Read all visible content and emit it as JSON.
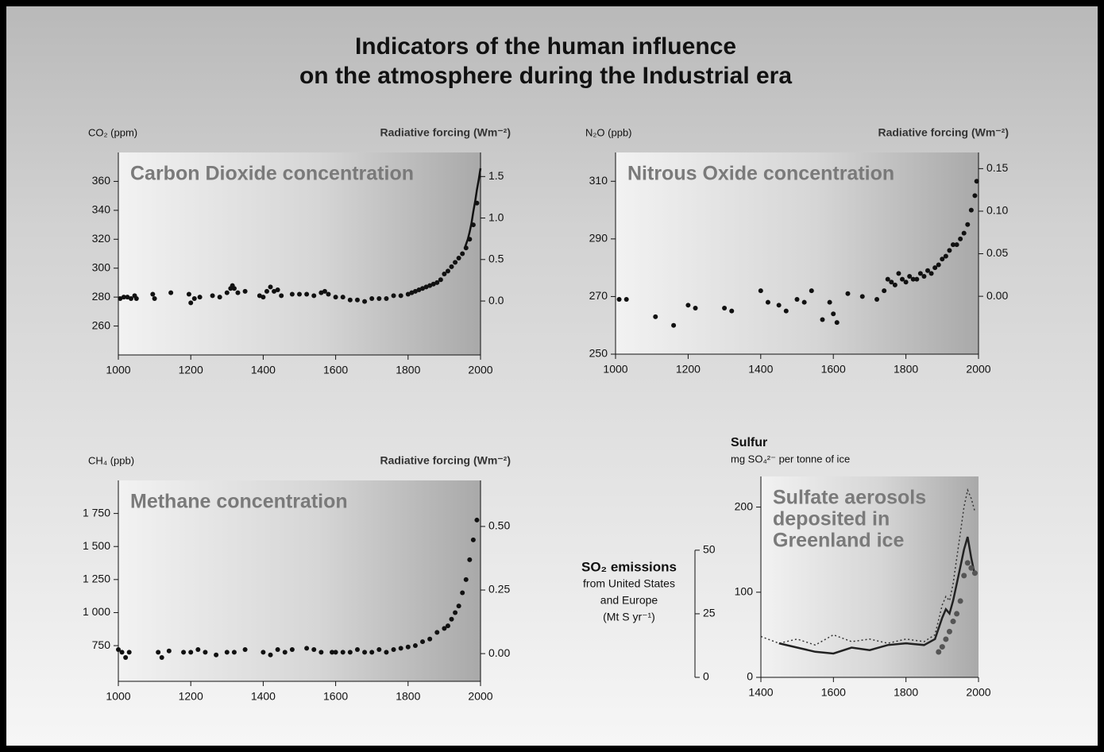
{
  "title_lines": [
    "Indicators of the human influence",
    "on the atmosphere during the Industrial era"
  ],
  "chart_data": [
    {
      "type": "scatter",
      "plot_title": [
        "Carbon Dioxide concentration"
      ],
      "ylabel": [
        "CO₂ (ppm)"
      ],
      "y2label": "Radiative forcing (Wm⁻²)",
      "xlim": [
        1000,
        2000
      ],
      "xticks": [
        1000,
        1200,
        1400,
        1600,
        1800,
        2000
      ],
      "ylim": [
        240,
        380
      ],
      "yticks": [
        260,
        280,
        300,
        320,
        340,
        360
      ],
      "y2lim": [
        -0.65,
        1.79
      ],
      "y2ticks": [
        {
          "value": 0,
          "label": "0.0"
        },
        0.5,
        {
          "value": 1,
          "label": "1.0"
        },
        1.5
      ],
      "series": [
        {
          "mode": "markers",
          "color": "#111111",
          "x": [
            1005,
            1015,
            1025,
            1035,
            1045,
            1050,
            1095,
            1100,
            1145,
            1195,
            1200,
            1210,
            1225,
            1260,
            1280,
            1300,
            1310,
            1315,
            1320,
            1330,
            1350,
            1390,
            1400,
            1410,
            1420,
            1430,
            1440,
            1450,
            1480,
            1500,
            1520,
            1540,
            1560,
            1570,
            1580,
            1600,
            1620,
            1640,
            1660,
            1680,
            1700,
            1720,
            1740,
            1760,
            1780,
            1800,
            1810,
            1820,
            1830,
            1840,
            1850,
            1860,
            1870,
            1880,
            1890,
            1900,
            1910,
            1920,
            1930,
            1940,
            1950,
            1960,
            1970,
            1980,
            1990
          ],
          "values": [
            279,
            280,
            280,
            279,
            281,
            279,
            282,
            279,
            283,
            282,
            276,
            279,
            280,
            281,
            280,
            283,
            286,
            288,
            286,
            283,
            284,
            281,
            280,
            284,
            287,
            284,
            285,
            281,
            282,
            282,
            282,
            281,
            283,
            284,
            282,
            280,
            280,
            278,
            278,
            277,
            279,
            279,
            279,
            281,
            281,
            282,
            283,
            284,
            285,
            286,
            287,
            288,
            289,
            290,
            292,
            296,
            298,
            301,
            304,
            307,
            310,
            314,
            320,
            330,
            345
          ]
        },
        {
          "mode": "line",
          "line_style": "solid",
          "color": "#111111",
          "x": [
            1958,
            1965,
            1970,
            1975,
            1980,
            1985,
            1990,
            1995,
            2000
          ],
          "values": [
            315,
            320,
            325,
            331,
            339,
            346,
            354,
            361,
            369
          ]
        }
      ]
    },
    {
      "type": "scatter",
      "plot_title": [
        "Nitrous Oxide concentration"
      ],
      "ylabel": [
        "N₂O (ppb)"
      ],
      "y2label": "Radiative forcing (Wm⁻²)",
      "xlim": [
        1000,
        2000
      ],
      "xticks": [
        1000,
        1200,
        1400,
        1600,
        1800,
        2000
      ],
      "ylim": [
        250,
        320
      ],
      "yticks": [
        250,
        270,
        290,
        310
      ],
      "y2lim": [
        -0.068,
        0.169
      ],
      "y2ticks": [
        {
          "value": 0,
          "label": "0.00"
        },
        0.05,
        {
          "value": 0.1,
          "label": "0.10"
        },
        0.15
      ],
      "series": [
        {
          "mode": "markers",
          "color": "#111111",
          "x": [
            1010,
            1030,
            1110,
            1160,
            1200,
            1220,
            1300,
            1320,
            1400,
            1420,
            1450,
            1470,
            1500,
            1520,
            1540,
            1570,
            1590,
            1600,
            1610,
            1640,
            1680,
            1720,
            1740,
            1750,
            1760,
            1770,
            1780,
            1790,
            1800,
            1810,
            1820,
            1830,
            1840,
            1850,
            1860,
            1870,
            1880,
            1890,
            1900,
            1910,
            1920,
            1930,
            1940,
            1950,
            1960,
            1970,
            1980,
            1990,
            1995
          ],
          "values": [
            269,
            269,
            263,
            260,
            267,
            266,
            266,
            265,
            272,
            268,
            267,
            265,
            269,
            268,
            272,
            262,
            268,
            264,
            261,
            271,
            270,
            269,
            272,
            276,
            275,
            274,
            278,
            276,
            275,
            277,
            276,
            276,
            278,
            277,
            279,
            278,
            280,
            281,
            283,
            284,
            286,
            288,
            288,
            290,
            292,
            295,
            300,
            305,
            310
          ]
        }
      ]
    },
    {
      "type": "scatter",
      "plot_title": [
        "Methane concentration"
      ],
      "ylabel": [
        "CH₄ (ppb)"
      ],
      "y2label": "Radiative forcing (Wm⁻²)",
      "xlim": [
        1000,
        2000
      ],
      "xticks": [
        1000,
        1200,
        1400,
        1600,
        1800,
        2000
      ],
      "ylim": [
        480,
        2000
      ],
      "yticks": [
        750,
        {
          "value": 1000,
          "label": "1 000"
        },
        {
          "value": 1250,
          "label": "1 250"
        },
        {
          "value": 1500,
          "label": "1 500"
        },
        {
          "value": 1750,
          "label": "1 750"
        }
      ],
      "y2lim": [
        -0.109,
        0.681
      ],
      "y2ticks": [
        {
          "value": 0,
          "label": "0.00"
        },
        0.25,
        {
          "value": 0.5,
          "label": "0.50"
        }
      ],
      "series": [
        {
          "mode": "markers",
          "color": "#111111",
          "x": [
            1000,
            1010,
            1020,
            1030,
            1110,
            1120,
            1140,
            1180,
            1200,
            1220,
            1240,
            1270,
            1300,
            1320,
            1350,
            1400,
            1420,
            1440,
            1460,
            1480,
            1520,
            1540,
            1560,
            1590,
            1600,
            1620,
            1640,
            1660,
            1680,
            1700,
            1720,
            1740,
            1760,
            1780,
            1800,
            1820,
            1840,
            1860,
            1880,
            1900,
            1910,
            1920,
            1930,
            1940,
            1950,
            1960,
            1970,
            1980,
            1990
          ],
          "values": [
            720,
            700,
            660,
            700,
            700,
            660,
            710,
            700,
            700,
            720,
            700,
            680,
            700,
            700,
            720,
            700,
            680,
            720,
            700,
            720,
            730,
            720,
            700,
            700,
            700,
            700,
            700,
            720,
            700,
            700,
            720,
            700,
            720,
            730,
            740,
            750,
            780,
            800,
            850,
            880,
            900,
            950,
            1000,
            1050,
            1150,
            1250,
            1400,
            1550,
            1700
          ]
        }
      ]
    },
    {
      "type": "line",
      "plot_title": [
        "Sulfate aerosols",
        "deposited in",
        "Greenland ice"
      ],
      "ylabel": [
        "Sulfur",
        "mg SO₄²⁻ per tonne of ice"
      ],
      "y2label": [
        "SO₂ emissions",
        "from United States",
        "and Europe",
        "(Mt S yr⁻¹)"
      ],
      "xlim": [
        1400,
        2000
      ],
      "xticks": [
        1400,
        1600,
        1800,
        2000
      ],
      "ylim": [
        0,
        236
      ],
      "yticks": [
        0,
        100,
        200
      ],
      "y2lim": [
        0,
        79
      ],
      "y2ticks": [
        0,
        25,
        50
      ],
      "series": [
        {
          "mode": "line",
          "line_style": "solid",
          "color": "#222222",
          "x": [
            1450,
            1500,
            1550,
            1600,
            1650,
            1700,
            1750,
            1800,
            1850,
            1880,
            1900,
            1910,
            1920,
            1930,
            1940,
            1950,
            1960,
            1970,
            1980,
            1990
          ],
          "values": [
            40,
            35,
            30,
            28,
            35,
            32,
            38,
            40,
            38,
            45,
            70,
            80,
            75,
            90,
            110,
            130,
            150,
            165,
            140,
            120
          ]
        },
        {
          "mode": "line",
          "line_style": "dotted",
          "color": "#333333",
          "x": [
            1400,
            1450,
            1500,
            1550,
            1600,
            1650,
            1700,
            1750,
            1800,
            1850,
            1880,
            1900,
            1910,
            1920,
            1930,
            1940,
            1950,
            1960,
            1970,
            1980,
            1990
          ],
          "values": [
            48,
            40,
            45,
            38,
            50,
            42,
            45,
            40,
            45,
            42,
            50,
            85,
            95,
            90,
            110,
            140,
            170,
            200,
            220,
            210,
            195
          ]
        },
        {
          "mode": "markers",
          "axis": "y2",
          "color": "#555555",
          "x": [
            1890,
            1900,
            1910,
            1920,
            1930,
            1940,
            1950,
            1960,
            1970,
            1980,
            1990
          ],
          "values": [
            10,
            12,
            15,
            18,
            22,
            25,
            30,
            40,
            45,
            43,
            41
          ]
        }
      ]
    }
  ]
}
